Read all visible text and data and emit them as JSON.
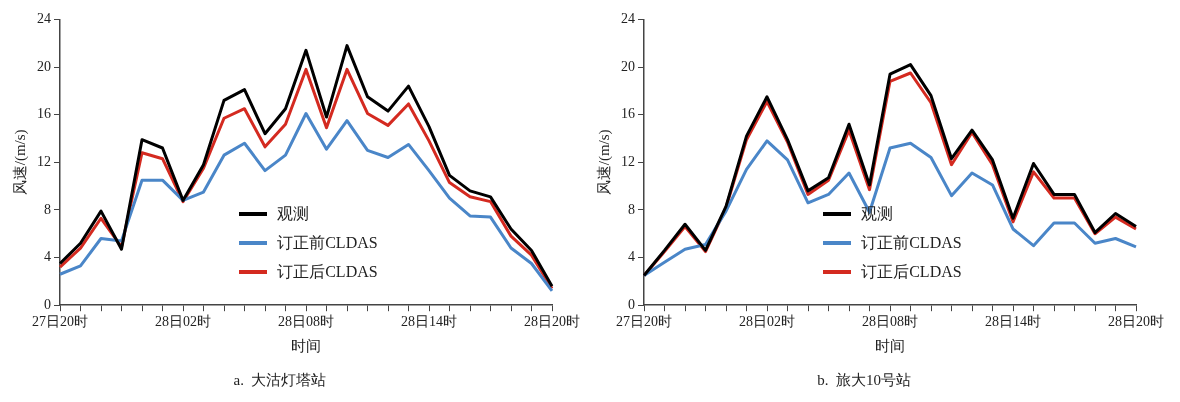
{
  "chart_data": [
    {
      "type": "line",
      "title": "a.  大沽灯塔站",
      "xlabel": "时间",
      "ylabel": "风速/(m/s)",
      "legend": "bottom",
      "categories": [
        "27日20时",
        null,
        null,
        null,
        null,
        null,
        "28日02时",
        null,
        null,
        null,
        null,
        null,
        "28日08时",
        null,
        null,
        null,
        null,
        null,
        "28日14时",
        null,
        null,
        null,
        null,
        null,
        "28日20时"
      ],
      "ylim": [
        0,
        24
      ],
      "yticks": [
        0,
        4,
        8,
        12,
        16,
        20,
        24
      ],
      "series": [
        {
          "name": "观测",
          "color": "#000000",
          "values": [
            3.5,
            5.2,
            7.9,
            4.7,
            13.9,
            13.2,
            8.8,
            11.8,
            17.2,
            18.1,
            14.4,
            16.5,
            21.4,
            15.8,
            21.8,
            17.5,
            16.3,
            18.4,
            15.0,
            10.9,
            9.6,
            9.1,
            6.4,
            4.6,
            1.6
          ]
        },
        {
          "name": "订正前CLDAS",
          "color": "#4a86c8",
          "values": [
            2.6,
            3.3,
            5.6,
            5.4,
            10.5,
            10.5,
            8.8,
            9.5,
            12.6,
            13.6,
            11.3,
            12.6,
            16.1,
            13.1,
            15.5,
            13.0,
            12.4,
            13.5,
            11.3,
            9.0,
            7.5,
            7.4,
            4.8,
            3.5,
            1.2
          ]
        },
        {
          "name": "订正后CLDAS",
          "color": "#d42a20",
          "values": [
            3.2,
            4.8,
            7.3,
            4.9,
            12.8,
            12.3,
            8.7,
            11.5,
            15.7,
            16.5,
            13.3,
            15.2,
            19.8,
            14.9,
            19.8,
            16.1,
            15.1,
            16.9,
            13.8,
            10.3,
            9.1,
            8.7,
            5.8,
            4.2,
            1.4
          ]
        }
      ]
    },
    {
      "type": "line",
      "title": "b.  旅大10号站",
      "xlabel": "时间",
      "ylabel": "风速/(m/s)",
      "legend": "bottom",
      "categories": [
        "27日20时",
        null,
        null,
        null,
        null,
        null,
        "28日02时",
        null,
        null,
        null,
        null,
        null,
        "28日08时",
        null,
        null,
        null,
        null,
        null,
        "28日14时",
        null,
        null,
        null,
        null,
        null,
        "28日20时"
      ],
      "ylim": [
        0,
        24
      ],
      "yticks": [
        0,
        4,
        8,
        12,
        16,
        20,
        24
      ],
      "series": [
        {
          "name": "观测",
          "color": "#000000",
          "values": [
            2.5,
            4.6,
            6.8,
            4.6,
            8.3,
            14.2,
            17.5,
            13.9,
            9.6,
            10.7,
            15.2,
            10.1,
            19.4,
            20.2,
            17.6,
            12.3,
            14.7,
            12.2,
            7.3,
            11.9,
            9.3,
            9.3,
            6.1,
            7.7,
            6.6
          ]
        },
        {
          "name": "订正前CLDAS",
          "color": "#4a86c8",
          "values": [
            2.5,
            3.6,
            4.7,
            5.1,
            7.9,
            11.4,
            13.8,
            12.2,
            8.6,
            9.3,
            11.1,
            7.8,
            13.2,
            13.6,
            12.4,
            9.2,
            11.1,
            10.1,
            6.4,
            5.0,
            6.9,
            6.9,
            5.2,
            5.6,
            4.9
          ]
        },
        {
          "name": "订正后CLDAS",
          "color": "#d42a20",
          "values": [
            2.5,
            4.5,
            6.6,
            4.5,
            8.2,
            13.9,
            17.1,
            13.7,
            9.3,
            10.5,
            14.7,
            9.7,
            18.8,
            19.5,
            17.0,
            11.8,
            14.5,
            11.8,
            7.0,
            11.2,
            9.0,
            9.0,
            6.0,
            7.4,
            6.4
          ]
        }
      ]
    }
  ]
}
